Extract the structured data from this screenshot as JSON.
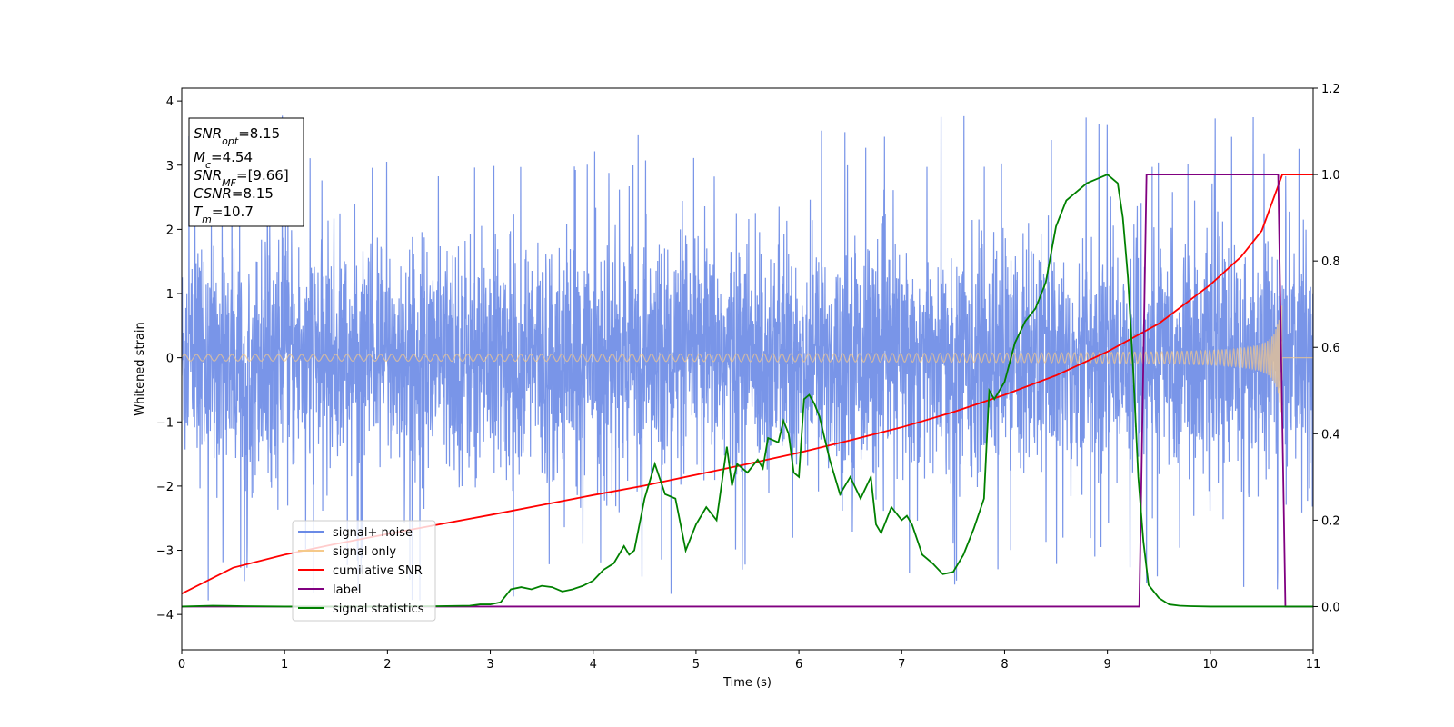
{
  "chart_data": {
    "type": "line",
    "xlabel": "Time (s)",
    "ylabel": "Whitened strain",
    "xlim": [
      0,
      11
    ],
    "ylim_left": [
      -4.55,
      4.2
    ],
    "ylim_right": [
      -0.1,
      1.2
    ],
    "x_ticks": [
      0,
      1,
      2,
      3,
      4,
      5,
      6,
      7,
      8,
      9,
      10,
      11
    ],
    "x_tick_labels": [
      "0",
      "1",
      "2",
      "3",
      "4",
      "5",
      "6",
      "7",
      "8",
      "9",
      "10",
      "11"
    ],
    "y_left_ticks": [
      -4,
      -3,
      -2,
      -1,
      0,
      1,
      2,
      3,
      4
    ],
    "y_left_tick_labels": [
      "−4",
      "−3",
      "−2",
      "−1",
      "0",
      "1",
      "2",
      "3",
      "4"
    ],
    "y_right_ticks": [
      0.0,
      0.2,
      0.4,
      0.6,
      0.8,
      1.0,
      1.2
    ],
    "y_right_tick_labels": [
      "0.0",
      "0.2",
      "0.4",
      "0.6",
      "0.8",
      "1.0",
      "1.2"
    ],
    "info_box": {
      "snr_opt": {
        "base": "SNR",
        "sub": "opt",
        "value": "=8.15"
      },
      "mc": {
        "base": "M",
        "sub": "c",
        "value": "=4.54"
      },
      "snr_mf": {
        "base": "SNR",
        "sub": "MF",
        "value": "=[9.66]"
      },
      "csnr": {
        "base": "CSNR",
        "value": "=8.15"
      },
      "tm": {
        "base": "T",
        "sub": "m",
        "value": "=10.7"
      }
    },
    "legend": {
      "placement": "lower-left",
      "entries": [
        {
          "label": "signal+ noise",
          "color": "#6a8ae6"
        },
        {
          "label": "signal only",
          "color": "#f5c98a"
        },
        {
          "label": "cumilative SNR",
          "color": "#ff0000"
        },
        {
          "label": "label",
          "color": "#800080"
        },
        {
          "label": "signal statistics",
          "color": "#008000"
        }
      ]
    },
    "series": [
      {
        "name": "signal+ noise",
        "axis": "left",
        "color": "#6a8ae6",
        "kind": "noise",
        "envelope_typical": 2.0,
        "envelope_peak": 3.8
      },
      {
        "name": "signal only",
        "axis": "left",
        "color": "#f5c98a",
        "kind": "chirp",
        "amplitude_start": 0.05,
        "amplitude_end": 0.9,
        "t_merge": 10.7
      },
      {
        "name": "cumilative SNR",
        "axis": "right",
        "color": "#ff0000",
        "x": [
          0,
          0.5,
          1,
          1.5,
          2,
          2.5,
          3,
          3.5,
          4,
          4.5,
          5,
          5.5,
          6,
          6.5,
          7,
          7.5,
          8,
          8.5,
          9,
          9.5,
          10,
          10.3,
          10.5,
          10.7,
          11
        ],
        "y": [
          0.03,
          0.09,
          0.12,
          0.145,
          0.168,
          0.19,
          0.212,
          0.235,
          0.258,
          0.28,
          0.305,
          0.33,
          0.356,
          0.385,
          0.415,
          0.45,
          0.49,
          0.535,
          0.59,
          0.655,
          0.745,
          0.81,
          0.87,
          1.0,
          1.0
        ]
      },
      {
        "name": "label",
        "axis": "right",
        "color": "#800080",
        "x": [
          0,
          9.31,
          9.38,
          10.66,
          10.73,
          11
        ],
        "y": [
          0,
          0,
          1,
          1,
          0,
          0
        ]
      },
      {
        "name": "signal statistics",
        "axis": "right",
        "color": "#008000",
        "x": [
          0,
          0.3,
          0.6,
          1,
          1.5,
          2,
          2.5,
          2.8,
          2.9,
          3.0,
          3.1,
          3.2,
          3.3,
          3.4,
          3.5,
          3.6,
          3.7,
          3.8,
          3.9,
          4.0,
          4.1,
          4.2,
          4.3,
          4.35,
          4.4,
          4.5,
          4.6,
          4.7,
          4.8,
          4.9,
          5.0,
          5.1,
          5.2,
          5.3,
          5.35,
          5.4,
          5.5,
          5.6,
          5.65,
          5.7,
          5.8,
          5.85,
          5.9,
          5.95,
          6.0,
          6.05,
          6.1,
          6.15,
          6.2,
          6.3,
          6.4,
          6.5,
          6.6,
          6.7,
          6.75,
          6.8,
          6.9,
          7.0,
          7.05,
          7.1,
          7.2,
          7.3,
          7.4,
          7.5,
          7.6,
          7.7,
          7.8,
          7.85,
          7.9,
          8.0,
          8.1,
          8.2,
          8.3,
          8.4,
          8.5,
          8.6,
          8.7,
          8.8,
          8.9,
          9.0,
          9.1,
          9.15,
          9.2,
          9.25,
          9.3,
          9.35,
          9.4,
          9.5,
          9.6,
          9.7,
          9.8,
          10.0,
          10.5,
          11.0
        ],
        "y": [
          0.0,
          0.002,
          0.001,
          0.0,
          0.0,
          0.0,
          0.001,
          0.002,
          0.005,
          0.005,
          0.01,
          0.04,
          0.045,
          0.04,
          0.048,
          0.045,
          0.035,
          0.04,
          0.048,
          0.06,
          0.085,
          0.1,
          0.14,
          0.12,
          0.13,
          0.25,
          0.33,
          0.26,
          0.25,
          0.13,
          0.19,
          0.23,
          0.2,
          0.37,
          0.28,
          0.33,
          0.31,
          0.34,
          0.32,
          0.39,
          0.38,
          0.43,
          0.4,
          0.31,
          0.3,
          0.48,
          0.49,
          0.47,
          0.44,
          0.34,
          0.26,
          0.3,
          0.25,
          0.3,
          0.19,
          0.17,
          0.23,
          0.2,
          0.21,
          0.19,
          0.12,
          0.1,
          0.075,
          0.08,
          0.12,
          0.18,
          0.25,
          0.5,
          0.48,
          0.52,
          0.61,
          0.66,
          0.69,
          0.75,
          0.88,
          0.94,
          0.96,
          0.98,
          0.99,
          1.0,
          0.98,
          0.9,
          0.76,
          0.55,
          0.3,
          0.15,
          0.05,
          0.02,
          0.005,
          0.002,
          0.001,
          0.0,
          0.0,
          0.0
        ]
      }
    ]
  }
}
